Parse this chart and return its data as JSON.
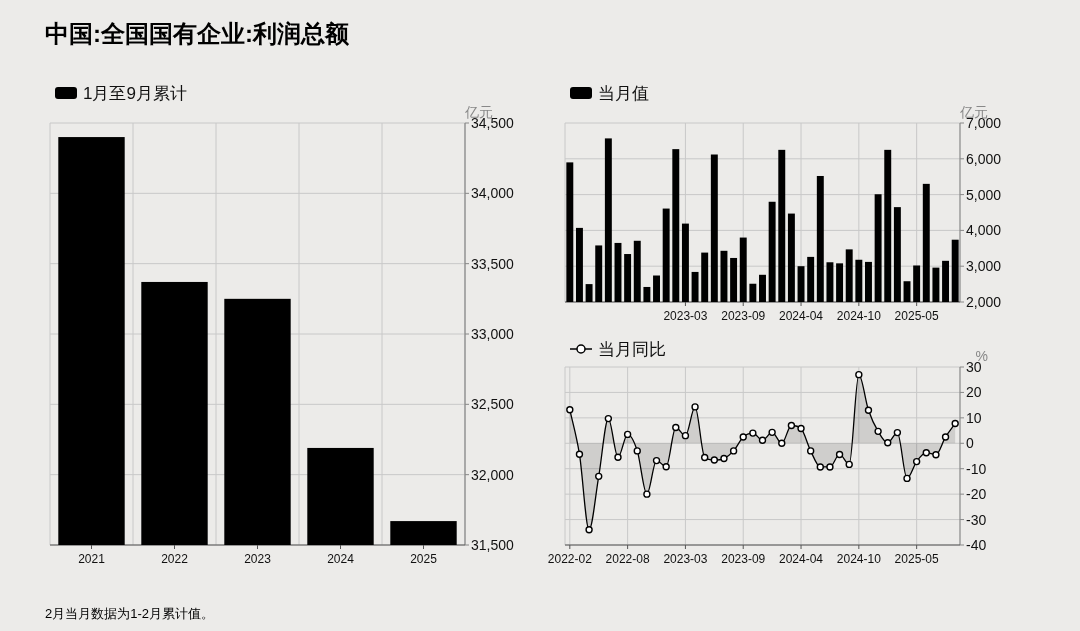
{
  "chart_data": [
    {
      "type": "bar",
      "title": "中国:全国国有企业:利润总额",
      "categories": [
        "2021",
        "2022",
        "2023",
        "2024",
        "2025"
      ],
      "series": [
        {
          "name": "1月至9月累计",
          "color": "#000000",
          "values": [
            34400,
            33370,
            33250,
            32190,
            31670
          ]
        }
      ],
      "ylabel": "亿元",
      "ylim": [
        31500,
        34500
      ],
      "yticks": [
        {
          "value": 31500,
          "label": "31,500"
        },
        {
          "value": 32000,
          "label": "32,000"
        },
        {
          "value": 32500,
          "label": "32,500"
        },
        {
          "value": 33000,
          "label": "33,000"
        },
        {
          "value": 33500,
          "label": "33,500"
        },
        {
          "value": 34000,
          "label": "34,000"
        },
        {
          "value": 34500,
          "label": "34,500"
        }
      ],
      "grid": true,
      "legend": "top left",
      "annotations": [
        "2月当月数据为1-2月累计值。"
      ]
    },
    {
      "type": "bar",
      "categories": [
        null,
        null,
        null,
        null,
        null,
        null,
        null,
        null,
        null,
        null,
        null,
        null,
        "2023-03",
        null,
        null,
        null,
        null,
        null,
        "2023-09",
        null,
        null,
        null,
        null,
        null,
        "2024-04",
        null,
        null,
        null,
        null,
        null,
        "2024-10",
        null,
        null,
        null,
        null,
        null,
        "2025-05",
        null,
        null,
        null,
        null
      ],
      "series": [
        {
          "name": "当月值",
          "color": "#000000",
          "values": [
            5900,
            4070,
            2500,
            3580,
            6570,
            3650,
            3340,
            3710,
            2420,
            2740,
            4610,
            6270,
            4190,
            2840,
            3380,
            6120,
            3430,
            3230,
            3800,
            2510,
            2760,
            4800,
            6250,
            4470,
            3000,
            3260,
            5520,
            3110,
            3080,
            3470,
            3180,
            3120,
            5010,
            6250,
            4650,
            2580,
            3020,
            5300,
            2960,
            3150,
            3740
          ]
        }
      ],
      "ylabel": "亿元",
      "ylim": [
        2000,
        7000
      ],
      "yticks": [
        {
          "value": 2000,
          "label": "2,000"
        },
        {
          "value": 3000,
          "label": "3,000"
        },
        {
          "value": 4000,
          "label": "4,000"
        },
        {
          "value": 5000,
          "label": "5,000"
        },
        {
          "value": 6000,
          "label": "6,000"
        },
        {
          "value": 7000,
          "label": "7,000"
        }
      ],
      "grid": true,
      "legend": "top left"
    },
    {
      "type": "area",
      "categories": [
        "2022-02",
        null,
        null,
        null,
        null,
        null,
        "2022-08",
        null,
        null,
        null,
        null,
        null,
        "2023-03",
        null,
        null,
        null,
        null,
        null,
        "2023-09",
        null,
        null,
        null,
        null,
        null,
        "2024-04",
        null,
        null,
        null,
        null,
        null,
        "2024-10",
        null,
        null,
        null,
        null,
        null,
        "2025-05",
        null,
        null,
        null,
        null
      ],
      "series": [
        {
          "name": "当月同比",
          "color": "#000000",
          "values": [
            13.2,
            -4.3,
            -34,
            -13,
            9.7,
            -5.5,
            3.5,
            -3,
            -20,
            -6.8,
            -9.2,
            6.2,
            3,
            14.3,
            -5.6,
            -6.6,
            -6,
            -3,
            2.5,
            4,
            1.2,
            4.3,
            0,
            7,
            5.8,
            -3,
            -9.3,
            -9.3,
            -4.4,
            -8.3,
            27,
            13,
            4.7,
            0.2,
            4.2,
            -13.8,
            -7.2,
            -3.7,
            -4.5,
            2.5,
            7.8
          ]
        }
      ],
      "ylabel": "%",
      "ylim": [
        -40,
        30
      ],
      "yticks": [
        -40,
        -30,
        -20,
        -10,
        0,
        10,
        20,
        30
      ],
      "grid": true,
      "legend": "top left",
      "marker": "circle"
    }
  ]
}
